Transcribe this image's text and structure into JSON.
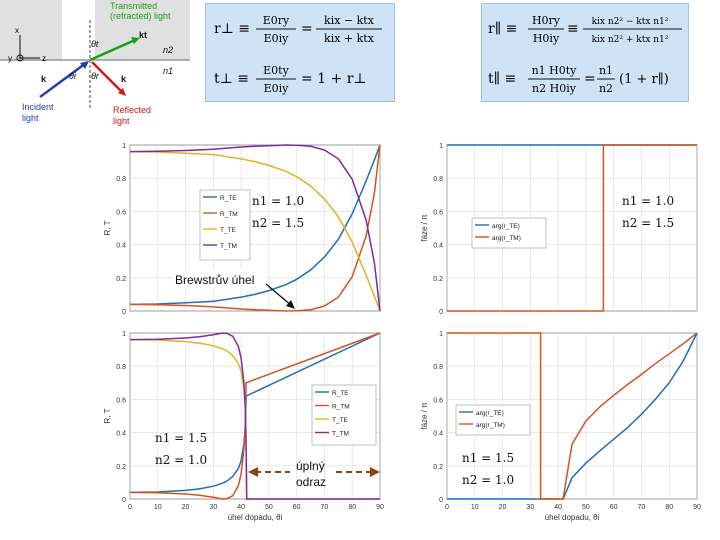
{
  "diagram": {
    "transmitted_label": "Transmitted\n(refracted) light",
    "incident_label": "Incident\nlight",
    "reflected_label": "Reflected\nlight",
    "theta_t": "θt",
    "theta_i": "θi",
    "theta_r": "θr",
    "n1": "n1",
    "n2": "n2",
    "k_t": "kt",
    "k_i": "k",
    "k_r": "k",
    "axis_x": "x",
    "axis_y": "y",
    "axis_z": "z",
    "colors": {
      "incident": "#1f3fbf",
      "reflected": "#d01818",
      "transmitted": "#17a017",
      "interface_fill": "#e0e0e0"
    }
  },
  "equations": {
    "te_r": "r⊥ ≡ E0ry / E0iy = (kix − ktx) / (kix + ktx)",
    "te_t": "t⊥ ≡ E0ty / E0iy = 1 + r⊥",
    "tm_r": "r∥ ≡ H0ry / H0iy = (kix n2² − ktx n1²) / (kix n2² + ktx n1²)",
    "tm_t": "t∥ ≡ n1 H0ty / n2 H0iy = n1/n2 (1 + r∥)",
    "te_r_lhs": "r⊥ ≡",
    "te_r_num1": "E0ry",
    "te_r_den1": "E0iy",
    "te_r_num2": "kix − ktx",
    "te_r_den2": "kix + ktx",
    "te_t_lhs": "t⊥ ≡",
    "te_t_num": "E0ty",
    "te_t_den": "E0iy",
    "te_t_rhs": "= 1 + r⊥",
    "tm_r_lhs": "r∥ ≡",
    "tm_r_num1": "H0ry",
    "tm_r_den1": "H0iy",
    "tm_r_num2": "kix n2² − ktx n1²",
    "tm_r_den2": "kix n2² + ktx n1²",
    "tm_t_lhs": "t∥ ≡",
    "tm_t_num1": "n1 H0ty",
    "tm_t_den1": "n2 H0iy",
    "tm_t_num2": "n1",
    "tm_t_den2": "n2",
    "tm_t_rhs": "(1 + r∥)",
    "bg_color": "#cfe3f7"
  },
  "annotations": {
    "brewster": "Brewstrův úhel",
    "tir_line1": "úplný",
    "tir_line2": "odraz"
  },
  "chart_data": [
    {
      "type": "line",
      "xlabel": "",
      "ylabel": "R, T",
      "xlim": [
        0,
        90
      ],
      "ylim": [
        0,
        1
      ],
      "yticks": [
        0,
        0.2,
        0.4,
        0.6,
        0.8,
        1
      ],
      "ytick_labels": [
        "0",
        "0.2",
        "0.4",
        "0.6",
        "0.8",
        "1"
      ],
      "grid": true,
      "legend": [
        "R_TE",
        "R_TM",
        "T_TE",
        "T_TM"
      ],
      "legend_position": "center-left",
      "media_text": [
        "n1 = 1.0",
        "n2 = 1.5"
      ],
      "series": [
        {
          "name": "R_TE",
          "color": "#1f6fb5",
          "x": [
            0,
            10,
            20,
            30,
            40,
            45,
            50,
            56.3,
            60,
            65,
            70,
            75,
            80,
            85,
            88,
            90
          ],
          "y": [
            0.04,
            0.042,
            0.05,
            0.058,
            0.084,
            0.1,
            0.123,
            0.16,
            0.191,
            0.247,
            0.325,
            0.432,
            0.585,
            0.784,
            0.91,
            1.0
          ]
        },
        {
          "name": "R_TM",
          "color": "#d35420",
          "x": [
            0,
            10,
            20,
            30,
            40,
            45,
            50,
            56.3,
            60,
            65,
            70,
            75,
            80,
            85,
            88,
            90
          ],
          "y": [
            0.04,
            0.038,
            0.033,
            0.025,
            0.012,
            0.008,
            0.004,
            0.0,
            0.001,
            0.008,
            0.03,
            0.083,
            0.206,
            0.452,
            0.71,
            1.0
          ]
        },
        {
          "name": "T_TE",
          "color": "#e6b21b",
          "x": [
            0,
            10,
            20,
            30,
            40,
            45,
            50,
            56.3,
            60,
            65,
            70,
            75,
            80,
            85,
            88,
            90
          ],
          "y": [
            0.96,
            0.958,
            0.95,
            0.942,
            0.916,
            0.9,
            0.877,
            0.84,
            0.809,
            0.753,
            0.675,
            0.568,
            0.415,
            0.216,
            0.09,
            0.0
          ]
        },
        {
          "name": "T_TM",
          "color": "#7b2d9e",
          "x": [
            0,
            10,
            20,
            30,
            40,
            45,
            50,
            56.3,
            60,
            65,
            70,
            75,
            80,
            85,
            88,
            90
          ],
          "y": [
            0.96,
            0.962,
            0.967,
            0.975,
            0.988,
            0.992,
            0.996,
            1.0,
            0.999,
            0.992,
            0.97,
            0.917,
            0.794,
            0.548,
            0.29,
            0.0
          ]
        }
      ]
    },
    {
      "type": "line",
      "xlabel": "",
      "ylabel": "fáze / π",
      "xlim": [
        0,
        90
      ],
      "ylim": [
        0,
        1
      ],
      "yticks": [
        0,
        0.2,
        0.4,
        0.6,
        0.8,
        1
      ],
      "ytick_labels": [
        "0",
        "0.2",
        "0.4",
        "0.6",
        "0.8",
        "1"
      ],
      "grid": true,
      "legend": [
        "arg(r_TE)",
        "arg(r_TM)"
      ],
      "legend_position": "center-left",
      "media_text": [
        "n1 = 1.0",
        "n2 = 1.5"
      ],
      "series": [
        {
          "name": "arg(r_TE)",
          "color": "#1f6fb5",
          "x": [
            0,
            90
          ],
          "y": [
            1.0,
            1.0
          ]
        },
        {
          "name": "arg(r_TM)",
          "color": "#d35420",
          "x": [
            0,
            56.3,
            56.3,
            90
          ],
          "y": [
            0.0,
            0.0,
            1.0,
            1.0
          ]
        }
      ]
    },
    {
      "type": "line",
      "xlabel": "úhel dopadu, θi",
      "ylabel": "R, T",
      "xlim": [
        0,
        90
      ],
      "ylim": [
        0,
        1
      ],
      "xticks": [
        0,
        10,
        20,
        30,
        40,
        50,
        60,
        70,
        80,
        90
      ],
      "xtick_labels": [
        "0",
        "10",
        "20",
        "30",
        "40",
        "50",
        "60",
        "70",
        "80",
        "90"
      ],
      "yticks": [
        0,
        0.2,
        0.4,
        0.6,
        0.8,
        1
      ],
      "ytick_labels": [
        "0",
        "0.2",
        "0.4",
        "0.6",
        "0.8",
        "1"
      ],
      "grid": true,
      "legend": [
        "R_TE",
        "R_TM",
        "T_TE",
        "T_TM"
      ],
      "legend_position": "center-right",
      "media_text": [
        "n1 = 1.5",
        "n2 = 1.0"
      ],
      "series": [
        {
          "name": "R_TE",
          "color": "#1f6fb5",
          "x": [
            0,
            10,
            20,
            25,
            30,
            33,
            35,
            37,
            39,
            40,
            41,
            41.5,
            41.8,
            90
          ],
          "y": [
            0.04,
            0.042,
            0.052,
            0.061,
            0.077,
            0.093,
            0.109,
            0.136,
            0.184,
            0.23,
            0.33,
            0.44,
            0.62,
            1.0
          ]
        },
        {
          "name": "R_TM",
          "color": "#d35420",
          "x": [
            0,
            10,
            20,
            25,
            30,
            33,
            33.7,
            35,
            37,
            39,
            40,
            41,
            41.5,
            41.8,
            90
          ],
          "y": [
            0.04,
            0.038,
            0.03,
            0.022,
            0.01,
            0.002,
            0.0,
            0.003,
            0.02,
            0.08,
            0.15,
            0.3,
            0.45,
            0.7,
            1.0
          ]
        },
        {
          "name": "T_TE",
          "color": "#e6b21b",
          "x": [
            0,
            10,
            20,
            25,
            30,
            33,
            35,
            37,
            39,
            40,
            41,
            41.5,
            41.8,
            42,
            90
          ],
          "y": [
            0.96,
            0.958,
            0.948,
            0.939,
            0.923,
            0.907,
            0.891,
            0.864,
            0.816,
            0.77,
            0.67,
            0.56,
            0.38,
            0.0,
            0.0
          ]
        },
        {
          "name": "T_TM",
          "color": "#7b2d9e",
          "x": [
            0,
            10,
            20,
            25,
            30,
            33,
            33.7,
            35,
            37,
            39,
            40,
            41,
            41.5,
            41.8,
            42,
            90
          ],
          "y": [
            0.96,
            0.962,
            0.97,
            0.978,
            0.99,
            0.998,
            1.0,
            0.997,
            0.98,
            0.92,
            0.85,
            0.7,
            0.55,
            0.3,
            0.0,
            0.0
          ]
        }
      ]
    },
    {
      "type": "line",
      "xlabel": "úhel dopadu, θi",
      "ylabel": "fáze / π",
      "xlim": [
        0,
        90
      ],
      "ylim": [
        0,
        1
      ],
      "xticks": [
        0,
        10,
        20,
        30,
        40,
        50,
        60,
        70,
        80,
        90
      ],
      "xtick_labels": [
        "0",
        "10",
        "20",
        "30",
        "40",
        "50",
        "60",
        "70",
        "80",
        "90"
      ],
      "yticks": [
        0,
        0.2,
        0.4,
        0.6,
        0.8,
        1
      ],
      "ytick_labels": [
        "0",
        "0.2",
        "0.4",
        "0.6",
        "0.8",
        "1"
      ],
      "grid": true,
      "legend": [
        "arg(r_TE)",
        "arg(r_TM)"
      ],
      "legend_position": "center-left",
      "media_text": [
        "n1 = 1.5",
        "n2 = 1.0"
      ],
      "series": [
        {
          "name": "arg(r_TE)",
          "color": "#1f6fb5",
          "x": [
            0,
            41.8,
            41.8,
            45,
            50,
            55,
            60,
            65,
            70,
            75,
            80,
            85,
            90
          ],
          "y": [
            0,
            0,
            0.0,
            0.128,
            0.216,
            0.29,
            0.36,
            0.43,
            0.51,
            0.6,
            0.7,
            0.83,
            1.0
          ]
        },
        {
          "name": "arg(r_TM)",
          "color": "#d35420",
          "x": [
            0,
            33.7,
            33.7,
            41.8,
            41.8,
            45,
            50,
            55,
            60,
            65,
            70,
            75,
            80,
            85,
            90
          ],
          "y": [
            1,
            1,
            0,
            0,
            0,
            0.33,
            0.47,
            0.555,
            0.625,
            0.69,
            0.75,
            0.815,
            0.875,
            0.935,
            1.0
          ]
        }
      ]
    }
  ]
}
